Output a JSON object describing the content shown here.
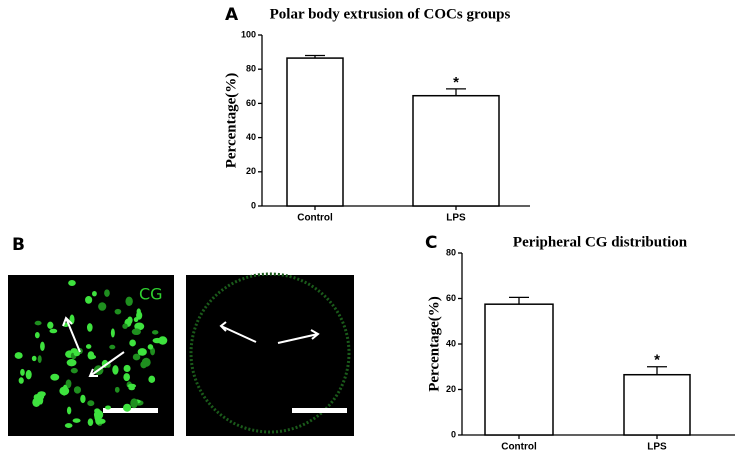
{
  "chart_data": [
    {
      "type": "bar",
      "panel": "A",
      "title": "Polar body extrusion of COCs groups",
      "y_label": "Percentage(%)",
      "categories": [
        "Control",
        "LPS"
      ],
      "values": [
        86.5,
        64.5
      ],
      "errors": [
        1.5,
        4
      ],
      "color": "#ffffff",
      "ylim": [
        0,
        100
      ],
      "yticks": [
        0,
        20,
        40,
        60,
        80,
        100
      ],
      "annotations": [
        {
          "category": "LPS",
          "text": "*"
        }
      ]
    },
    {
      "type": "bar",
      "panel": "C",
      "title": "Peripheral CG distribution",
      "y_label": "Percentage(%)",
      "categories": [
        "Control",
        "LPS"
      ],
      "values": [
        57.5,
        26.5
      ],
      "errors": [
        3,
        3.5
      ],
      "color": "#ffffff",
      "ylim": [
        0,
        80
      ],
      "yticks": [
        0,
        20,
        40,
        60,
        80
      ],
      "annotations": [
        {
          "category": "LPS",
          "text": "*"
        }
      ]
    }
  ],
  "images": {
    "panel": "B",
    "stain_label": "CG"
  }
}
